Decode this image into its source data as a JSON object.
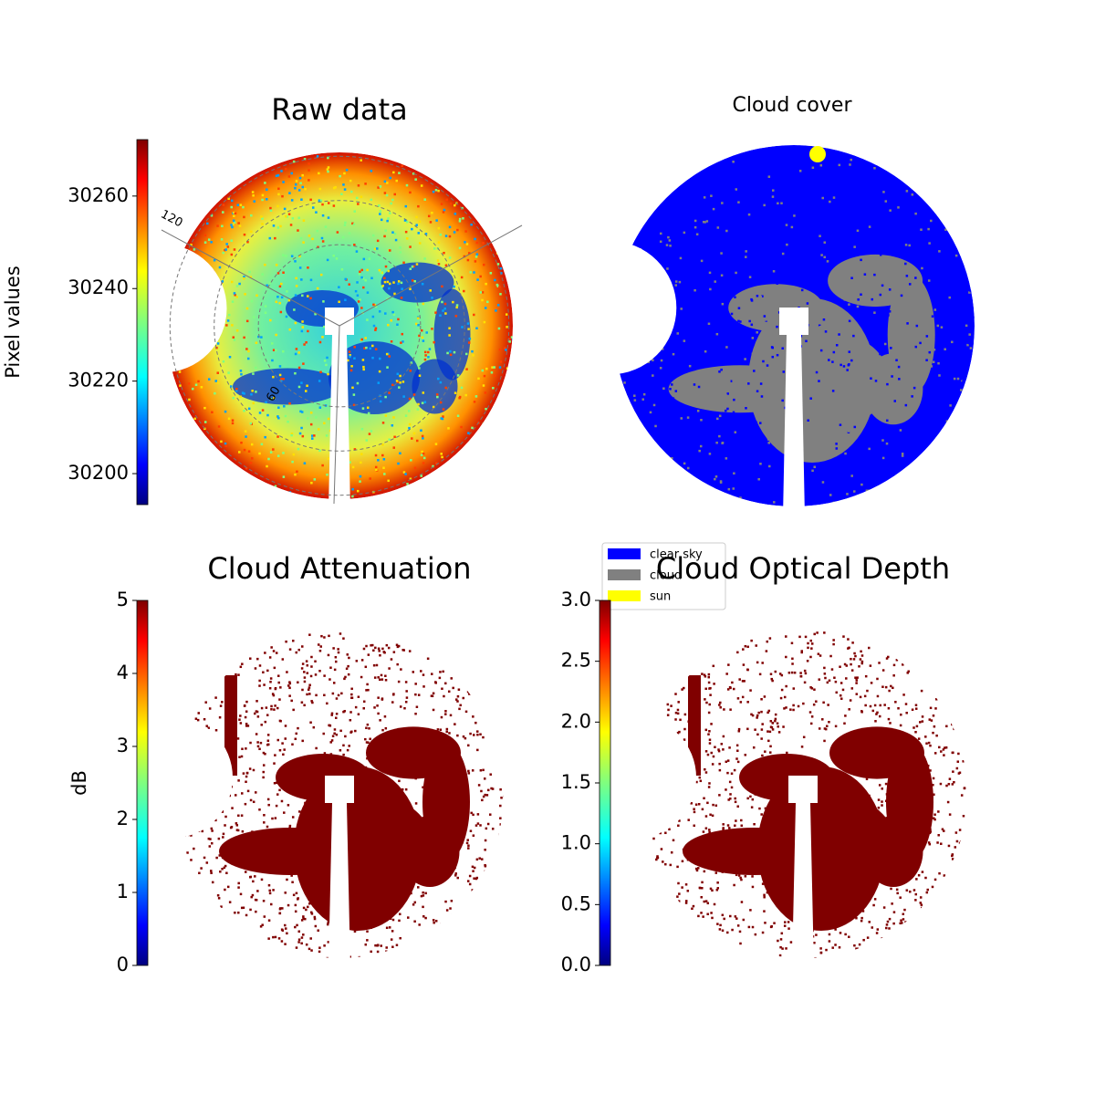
{
  "chart_data": [
    {
      "type": "heatmap",
      "title": "Raw data",
      "colormap": "jet",
      "colorbar": {
        "label": "Pixel values",
        "lim": [
          30193.3,
          30272.2
        ],
        "ticks": [
          30200,
          30220,
          30240,
          30260
        ]
      },
      "polar_labels": [
        "120",
        "60"
      ]
    },
    {
      "type": "class_map",
      "title": "Cloud cover",
      "legend_loc": "lower left",
      "classes": [
        {
          "name": "clear sky",
          "color": "#0000ff"
        },
        {
          "name": "cloud",
          "color": "#808080"
        },
        {
          "name": "sun",
          "color": "#ffff00"
        }
      ]
    },
    {
      "type": "heatmap",
      "title": "Cloud Attenuation",
      "colormap": "jet",
      "colorbar": {
        "label": "dB",
        "lim": [
          0,
          5
        ],
        "ticks": [
          0,
          1,
          2,
          3,
          4,
          5
        ]
      }
    },
    {
      "type": "heatmap",
      "title": "Cloud Optical Depth",
      "colormap": "jet",
      "colorbar": {
        "lim": [
          0,
          3
        ],
        "ticks": [
          {
            "value": 0,
            "label": "0.0"
          },
          {
            "value": 0.5,
            "label": "0.5"
          },
          {
            "value": 1,
            "label": "1.0"
          },
          {
            "value": 1.5,
            "label": "1.5"
          },
          {
            "value": 2,
            "label": "2.0"
          },
          {
            "value": 2.5,
            "label": "2.5"
          },
          {
            "value": 3,
            "label": "3.0"
          }
        ]
      }
    }
  ]
}
